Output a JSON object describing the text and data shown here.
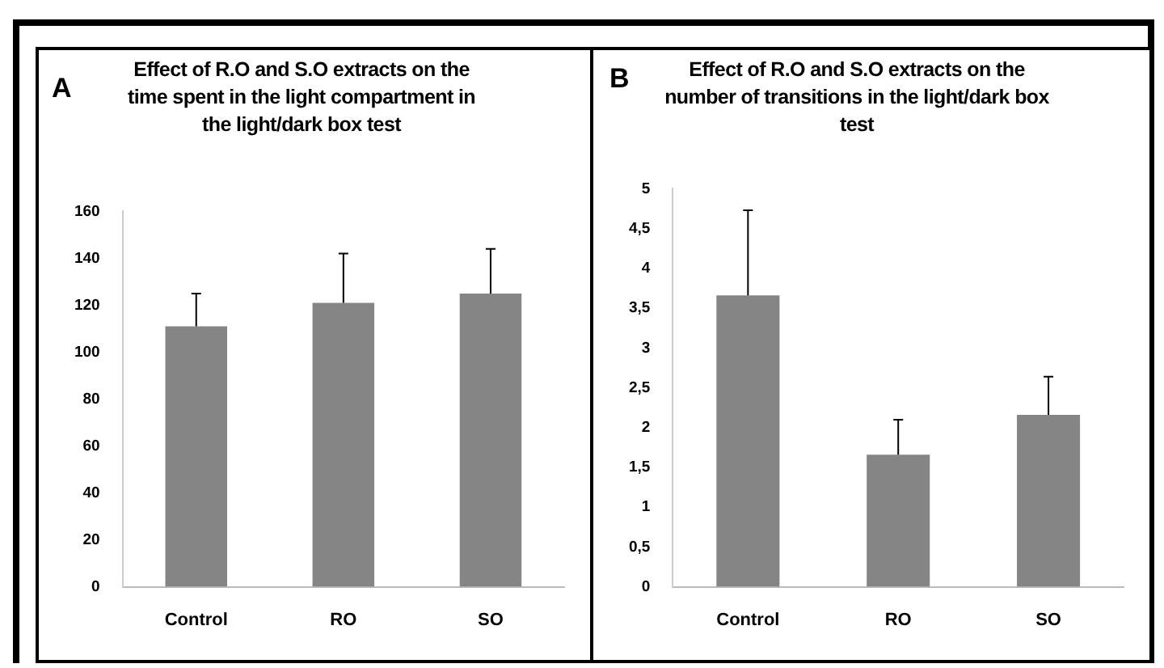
{
  "chart_data": [
    {
      "type": "bar",
      "title": "Effect of R.O and S.O extracts on the time spent in the light compartment in the light/dark box test",
      "annotations": [
        "A"
      ],
      "categories": [
        "Control",
        "RO",
        "SO"
      ],
      "values": [
        111,
        121,
        125
      ],
      "errors": [
        [
          111,
          125
        ],
        [
          121,
          142
        ],
        [
          125,
          144
        ]
      ],
      "color": "#858585",
      "ylim": [
        0,
        160
      ],
      "yticks": [
        0,
        20,
        40,
        60,
        80,
        100,
        120,
        140,
        160
      ],
      "grid": false,
      "legend": false
    },
    {
      "type": "bar",
      "title": "Effect of R.O and S.O extracts on the number of transitions in the light/dark  box test",
      "annotations": [
        "B"
      ],
      "categories": [
        "Control",
        "RO",
        "SO"
      ],
      "values": [
        3.66,
        1.66,
        2.16
      ],
      "errors": [
        [
          3.66,
          4.73
        ],
        [
          1.66,
          2.1
        ],
        [
          2.16,
          2.64
        ]
      ],
      "color": "#858585",
      "ylim": [
        0,
        5
      ],
      "yticks": [
        0,
        {
          "value": 0.5,
          "label": "0,5"
        },
        1,
        {
          "value": 1.5,
          "label": "1,5"
        },
        2,
        {
          "value": 2.5,
          "label": "2,5"
        },
        3,
        {
          "value": 3.5,
          "label": "3,5"
        },
        4,
        {
          "value": 4.5,
          "label": "4,5"
        },
        5
      ],
      "grid": false,
      "legend": false
    }
  ]
}
